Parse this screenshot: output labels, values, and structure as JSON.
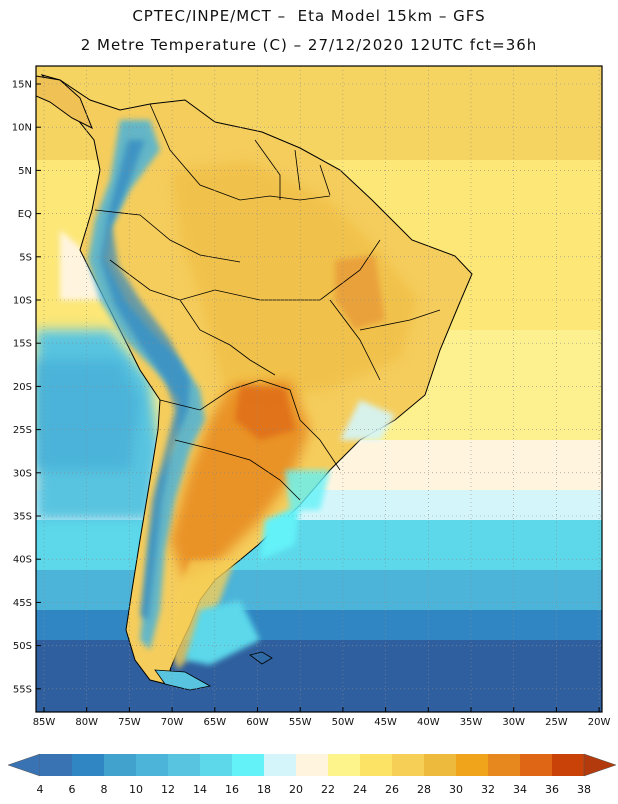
{
  "header": {
    "title_line1": "CPTEC/INPE/MCT –  Eta Model 15km – GFS",
    "title_line2": "2 Metre Temperature (C) – 27/12/2020 12UTC fct=36h"
  },
  "map": {
    "lat_labels": [
      "15N",
      "10N",
      "5N",
      "EQ",
      "5S",
      "10S",
      "15S",
      "20S",
      "25S",
      "30S",
      "35S",
      "40S",
      "45S",
      "50S",
      "55S"
    ],
    "lon_labels": [
      "85W",
      "80W",
      "75W",
      "70W",
      "65W",
      "60W",
      "55W",
      "50W",
      "45W",
      "40W",
      "35W",
      "30W",
      "25W",
      "20W"
    ],
    "grid": "dotted",
    "colors": {
      "ocean_cold": "#2f6aa6",
      "ocean_cool": "#5cd8ea",
      "ocean_mild": "#ffe77a",
      "land_warm": "#f4c95a",
      "land_hot": "#e89a38",
      "andes": "#4bb6d6"
    }
  },
  "colorbar": {
    "ticks": [
      "4",
      "6",
      "8",
      "10",
      "12",
      "14",
      "16",
      "18",
      "20",
      "22",
      "24",
      "26",
      "28",
      "30",
      "32",
      "34",
      "36",
      "38"
    ],
    "colors": [
      "#3a73b3",
      "#2f86c2",
      "#41a2cd",
      "#4cb3d9",
      "#58c4e0",
      "#5cd8ea",
      "#63f2f8",
      "#d4f6fb",
      "#fff5df",
      "#fdf58c",
      "#fce265",
      "#f6cf57",
      "#eeba3e",
      "#f0a41b",
      "#e7881e",
      "#de6614",
      "#c94208"
    ],
    "low_color": "#3a73b3",
    "high_color": "#b23a0c"
  }
}
